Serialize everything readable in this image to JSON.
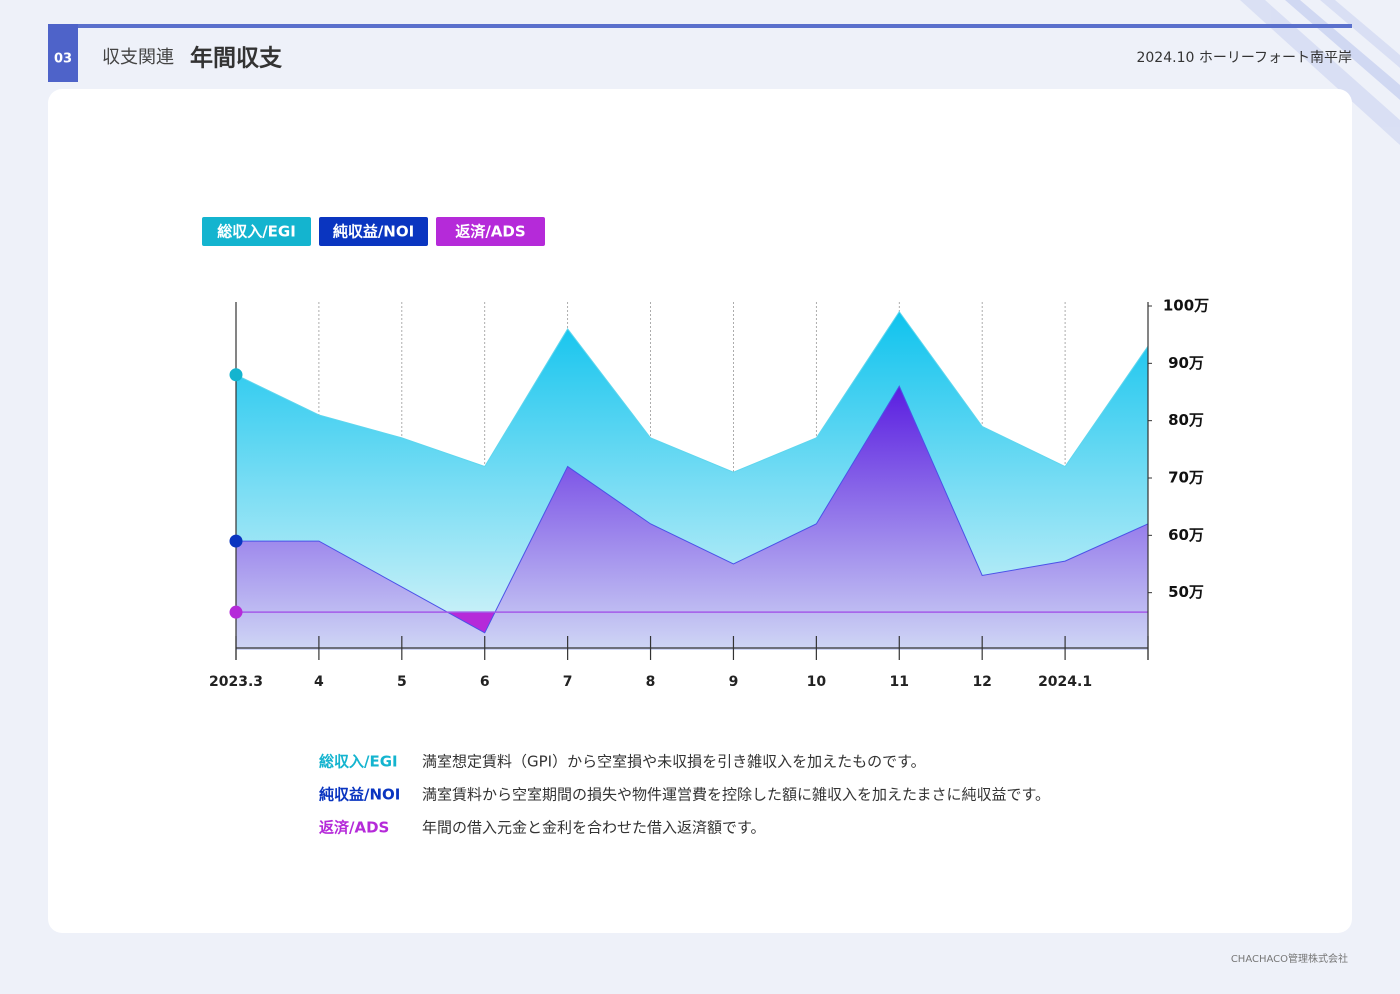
{
  "header": {
    "badge": "03",
    "section": "収支関連",
    "title": "年間収支",
    "meta": "2024.10 ホーリーフォート南平岸"
  },
  "chart_data": {
    "type": "area",
    "categories": [
      "2023.3",
      "4",
      "5",
      "6",
      "7",
      "8",
      "9",
      "10",
      "11",
      "12",
      "2024.1",
      null
    ],
    "series": [
      {
        "name": "総収入/EGI",
        "color": "#14b4cf",
        "values": [
          88,
          81,
          77,
          72,
          96,
          77,
          71,
          77,
          99,
          79,
          72,
          93
        ]
      },
      {
        "name": "純収益/NOI",
        "color": "#0a35c0",
        "values": [
          59,
          59,
          51,
          43,
          72,
          62,
          55,
          62,
          86,
          53,
          55.5,
          62
        ]
      },
      {
        "name": "返済/ADS",
        "color": "#b52ad9",
        "values": [
          46.6,
          46.6,
          46.6,
          46.6,
          46.6,
          46.6,
          46.6,
          46.6,
          46.6,
          46.6,
          46.6,
          46.6
        ]
      }
    ],
    "ylim": [
      40,
      100
    ],
    "yticks": [
      {
        "value": 50,
        "label": "50万"
      },
      {
        "value": 60,
        "label": "60万"
      },
      {
        "value": 70,
        "label": "70万"
      },
      {
        "value": 80,
        "label": "80万"
      },
      {
        "value": 90,
        "label": "90万"
      },
      {
        "value": 100,
        "label": "100万"
      }
    ],
    "grid": true
  },
  "notes": [
    "満室想定賃料（GPI）から空室損や未収損を引き雑収入を加えたものです。",
    "満室賃料から空室期間の損失や物件運営費を控除した額に雑収入を加えたまさに純収益です。",
    "年間の借入元金と金利を合わせた借入返済額です。"
  ],
  "footer": "CHACHACO管理株式会社"
}
